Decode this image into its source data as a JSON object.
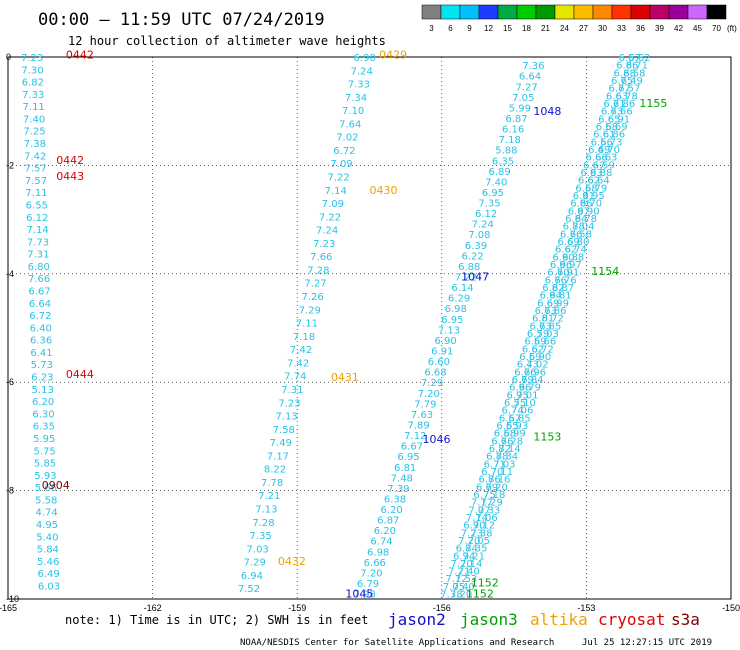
{
  "chart_data": {
    "type": "scatter",
    "title": "00:00 – 11:59 UTC 07/24/2019",
    "subtitle": "12 hour collection of altimeter wave heights",
    "x_ticks": [
      "-165",
      "-162",
      "-159",
      "-156",
      "-153",
      "-150"
    ],
    "y_ticks": [
      "0",
      "-2",
      "-4",
      "-6",
      "-8",
      "-10"
    ],
    "xlim": [
      -165,
      -150
    ],
    "ylim": [
      -10,
      0
    ],
    "grid": true,
    "colorbar": {
      "unit": "(ft)",
      "labels": [
        "3",
        "6",
        "9",
        "12",
        "15",
        "18",
        "21",
        "24",
        "27",
        "30",
        "33",
        "36",
        "39",
        "42",
        "45",
        "70"
      ],
      "colors": [
        "#808080",
        "#00e5ee",
        "#00bfff",
        "#1e3cff",
        "#00aa44",
        "#00cc00",
        "#009900",
        "#e5e500",
        "#ffbb00",
        "#ff8800",
        "#ff3300",
        "#dd0000",
        "#bb0066",
        "#990099",
        "#cc66ff",
        "#000000"
      ]
    },
    "point_color": "#29c2e6",
    "series": [
      {
        "name": "s3a",
        "values": [
          "7.23",
          "7.30",
          "6.82",
          "7.33",
          "7.11",
          "7.40",
          "7.25",
          "7.38",
          "7.42",
          "7.57",
          "7.57",
          "7.11",
          "6.55",
          "6.12",
          "7.14",
          "7.73",
          "7.31",
          "6.80",
          "7.66",
          "6.67",
          "6.64",
          "6.72",
          "6.40",
          "6.36",
          "6.41",
          "5.73",
          "6.23",
          "5.13",
          "6.20",
          "6.30",
          "6.35",
          "5.95",
          "5.75",
          "5.85",
          "5.93",
          "5.66",
          "5.58",
          "4.74",
          "4.95",
          "5.40",
          "5.84",
          "5.46",
          "6.49",
          "6.03"
        ],
        "lon_range": [
          -164.5,
          -164.15
        ],
        "lat_range": [
          0.0,
          -9.75
        ]
      },
      {
        "name": "altika",
        "values": [
          "6.90",
          "7.24",
          "7.33",
          "7.34",
          "7.10",
          "7.64",
          "7.02",
          "6.72",
          "7.09",
          "7.22",
          "7.14",
          "7.09",
          "7.22",
          "7.24",
          "7.23",
          "7.66",
          "7.28",
          "7.27",
          "7.26",
          "7.29",
          "7.11",
          "7.18",
          "7.42",
          "7.42",
          "7.74",
          "7.31",
          "7.23",
          "7.13",
          "7.58",
          "7.49",
          "7.17",
          "8.22",
          "7.78",
          "7.21",
          "7.13",
          "7.28",
          "7.35",
          "7.03",
          "7.29",
          "6.94",
          "7.52"
        ],
        "lon_range": [
          -157.6,
          -160.0
        ],
        "lat_range": [
          0.0,
          -9.8
        ]
      },
      {
        "name": "jason2",
        "values": [
          "7.36",
          "6.64",
          "7.27",
          "7.05",
          "5.99",
          "6.87",
          "6.16",
          "7.18",
          "5.88",
          "6.35",
          "6.89",
          "7.40",
          "6.95",
          "7.35",
          "6.12",
          "7.24",
          "7.08",
          "6.39",
          "6.22",
          "6.88",
          "7.22",
          "6.14",
          "6.29",
          "6.98",
          "6.95",
          "7.13",
          "6.90",
          "6.91",
          "6.60",
          "6.68",
          "7.29",
          "7.20",
          "7.79",
          "7.63",
          "7.89",
          "7.12",
          "6.67",
          "6.95",
          "6.81",
          "7.48",
          "7.39",
          "6.38",
          "6.20",
          "6.87",
          "6.20",
          "6.74",
          "6.98",
          "6.66",
          "7.20",
          "6.79",
          "7.98"
        ],
        "lon_range": [
          -154.1,
          -157.6
        ],
        "lat_range": [
          -0.15,
          -9.9
        ]
      },
      {
        "name": "jason3",
        "values": [
          "6.57",
          "6.86",
          "6.88",
          "6.75",
          "6.77",
          "6.63",
          "6.71",
          "6.73",
          "6.65",
          "6.58",
          "6.61",
          "6.56",
          "6.49",
          "6.66",
          "6.67",
          "6.93",
          "6.62",
          "6.58",
          "6.91",
          "6.86",
          "6.97",
          "6.84",
          "6.88",
          "6.76",
          "6.69",
          "6.62",
          "6.90",
          "6.96",
          "6.70",
          "6.76",
          "6.82",
          "6.94",
          "6.69",
          "6.73",
          "6.81",
          "6.73",
          "6.59",
          "6.59",
          "6.62",
          "6.59",
          "6.43",
          "6.76",
          "6.79",
          "6.96",
          "6.95",
          "6.55",
          "6.74",
          "6.57",
          "6.55",
          "6.58",
          "6.66",
          "6.82",
          "6.88",
          "6.71",
          "6.70",
          "6.86",
          "6.69",
          "6.75",
          "7.17",
          "7.07",
          "7.14",
          "6.90",
          "7.23",
          "7.20",
          "6.84",
          "6.94",
          "7.20",
          "7.21",
          "7.12",
          "7.05",
          "7.38"
        ],
        "lon_range": [
          -152.1,
          -155.8
        ],
        "lat_range": [
          0.0,
          -9.9
        ]
      },
      {
        "name": "cryosat",
        "values": [
          "6.62",
          "6.71",
          "6.58",
          "6.49",
          "6.57",
          "6.78",
          "6.86",
          "6.66",
          "6.91",
          "6.69",
          "6.86",
          "6.73",
          "6.70",
          "6.63",
          "6.59",
          "6.88",
          "6.64",
          "6.79",
          "6.95",
          "6.70",
          "6.90",
          "6.78",
          "7.04",
          "6.58",
          "6.80",
          "6.74",
          "6.88",
          "6.97",
          "6.91",
          "6.76",
          "6.87",
          "6.81",
          "6.99",
          "6.86",
          "6.72",
          "6.85",
          "7.03",
          "6.66",
          "6.72",
          "6.90",
          "7.02",
          "6.96",
          "6.84",
          "6.79",
          "7.01",
          "7.10",
          "7.06",
          "6.85",
          "6.93",
          "6.99",
          "7.28",
          "7.14",
          "7.34",
          "7.03",
          "7.11",
          "7.16",
          "7.20",
          "7.18",
          "7.29",
          "7.33",
          "7.06",
          "7.12",
          "7.38",
          "7.05",
          "7.35",
          "7.21",
          "7.14",
          "7.40",
          "7.53",
          "7.40",
          "7.20"
        ],
        "lon_range": [
          -151.9,
          -155.6
        ],
        "lat_range": [
          0.0,
          -9.9
        ]
      }
    ],
    "time_labels": [
      {
        "text": "0442",
        "sat": "cryosat",
        "lon": -163.8,
        "lat": 0.05
      },
      {
        "text": "0442",
        "sat": "cryosat",
        "lon": -164.0,
        "lat": -1.9
      },
      {
        "text": "0443",
        "sat": "cryosat",
        "lon": -164.0,
        "lat": -2.2
      },
      {
        "text": "0444",
        "sat": "cryosat",
        "lon": -163.8,
        "lat": -5.85
      },
      {
        "text": "0904",
        "sat": "s3a",
        "lon": -164.3,
        "lat": -7.9
      },
      {
        "text": "0429",
        "sat": "altika",
        "lon": -157.3,
        "lat": 0.05
      },
      {
        "text": "0430",
        "sat": "altika",
        "lon": -157.5,
        "lat": -2.45
      },
      {
        "text": "0431",
        "sat": "altika",
        "lon": -158.3,
        "lat": -5.9
      },
      {
        "text": "0432",
        "sat": "altika",
        "lon": -159.4,
        "lat": -9.3
      },
      {
        "text": "1048",
        "sat": "jason2",
        "lon": -154.1,
        "lat": -1.0
      },
      {
        "text": "1047",
        "sat": "jason2",
        "lon": -155.6,
        "lat": -4.05
      },
      {
        "text": "1046",
        "sat": "jason2",
        "lon": -156.4,
        "lat": -7.05
      },
      {
        "text": "1045",
        "sat": "jason2",
        "lon": -158.0,
        "lat": -9.9
      },
      {
        "text": "1155",
        "sat": "jason3",
        "lon": -151.9,
        "lat": -0.85
      },
      {
        "text": "1154",
        "sat": "jason3",
        "lon": -152.9,
        "lat": -3.95
      },
      {
        "text": "1153",
        "sat": "jason3",
        "lon": -154.1,
        "lat": -7.0
      },
      {
        "text": "1152",
        "sat": "jason3",
        "lon": -155.4,
        "lat": -9.7
      },
      {
        "text": "1152",
        "sat": "jason3",
        "lon": -155.5,
        "lat": -9.9
      }
    ],
    "footer_note": "note: 1) Time is in UTC; 2) SWH is in feet",
    "legend": [
      {
        "name": "jason2",
        "color": "#1010d0"
      },
      {
        "name": "jason3",
        "color": "#00a000"
      },
      {
        "name": "altika",
        "color": "#f0a000"
      },
      {
        "name": "cryosat",
        "color": "#e00000"
      },
      {
        "name": "s3a",
        "color": "#800000"
      }
    ],
    "credit": "NOAA/NESDIS Center for Satellite Applications and Research",
    "generated": "Jul 25 12:27:15 UTC 2019"
  }
}
